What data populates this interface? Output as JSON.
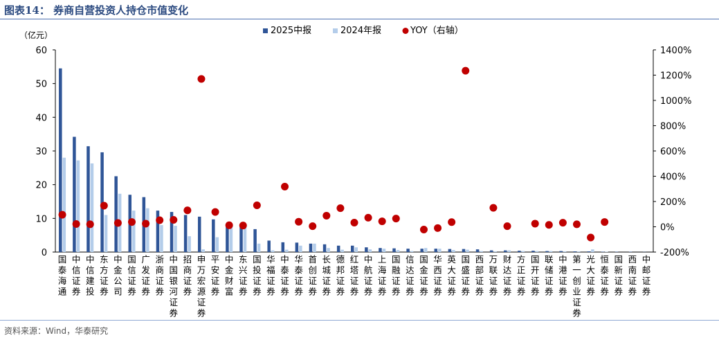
{
  "header": {
    "title": "图表14： 券商自营投资人持仓市值变化"
  },
  "footer": {
    "source": "资料来源：Wind，华泰研究"
  },
  "chart_data": {
    "type": "bar",
    "y_left_label": "（亿元）",
    "ylim_left": [
      0,
      60
    ],
    "yticks_left": [
      "0",
      "10",
      "20",
      "30",
      "40",
      "50",
      "60"
    ],
    "ylim_right": [
      -200,
      1400
    ],
    "yticks_right": [
      "-200%",
      "0%",
      "200%",
      "400%",
      "600%",
      "800%",
      "1000%",
      "1200%",
      "1400%"
    ],
    "legend": [
      "2025中报",
      "2024年报",
      "YOY（右轴）"
    ],
    "colors": {
      "h1_2025": "#2f5597",
      "fy_2024": "#b4cdea",
      "yoy": "#c00000"
    },
    "categories": [
      "国泰海通",
      "中信证券",
      "中信建投",
      "东方证券",
      "中金公司",
      "国信证券",
      "广发证券",
      "浙商证券",
      "中国银河证券",
      "招商证券",
      "申万宏源证券",
      "平安证券",
      "中金财富",
      "东兴证券",
      "国投证券",
      "华福证券",
      "中泰证券",
      "华泰证券",
      "首创证券",
      "长城证券",
      "德邦证券",
      "红塔证券",
      "中航证券",
      "上海证券",
      "国融证券",
      "信达证券",
      "国金证券",
      "华西证券",
      "英大证券",
      "国盛证券",
      "西部证券",
      "万联证券",
      "财达证券",
      "方正证券",
      "国开证券",
      "联储证券",
      "中港证券",
      "第一创业证券",
      "光大证券",
      "恒泰证券",
      "国新证券",
      "西南证券",
      "中邮证券"
    ],
    "series": [
      {
        "name": "2025中报",
        "values": [
          54.5,
          34.2,
          31.4,
          29.6,
          22.5,
          17.0,
          16.3,
          12.3,
          11.9,
          11.0,
          10.5,
          9.7,
          8.4,
          8.3,
          6.8,
          3.4,
          2.9,
          2.8,
          2.5,
          2.3,
          1.9,
          1.9,
          1.4,
          1.2,
          1.1,
          1.0,
          1.0,
          1.0,
          0.9,
          0.9,
          0.8,
          0.5,
          0.5,
          0.4,
          0.4,
          0.3,
          0.3,
          0.2,
          0.2,
          0.1,
          0.1,
          0.1,
          0.05
        ]
      },
      {
        "name": "2024年报",
        "values": [
          28.0,
          27.2,
          26.3,
          11.0,
          17.3,
          12.3,
          13.0,
          8.0,
          7.8,
          4.7,
          0.8,
          4.4,
          8.4,
          7.5,
          2.5,
          0.5,
          0.7,
          1.9,
          2.5,
          1.2,
          0.7,
          1.4,
          0.8,
          1.0,
          0.6,
          0.3,
          1.2,
          1.0,
          0.6,
          0.7,
          0.3,
          0.2,
          0.5,
          0.3,
          0.3,
          0.3,
          0.2,
          0.2,
          0.8,
          0.1,
          0,
          0,
          0
        ]
      },
      {
        "name": "YOY（右轴）",
        "values": [
          95,
          22,
          20,
          167,
          30,
          38,
          25,
          52,
          55,
          130,
          1170,
          117,
          12,
          10,
          170,
          null,
          318,
          40,
          5,
          88,
          147,
          33,
          72,
          43,
          65,
          null,
          -22,
          -10,
          37,
          1235,
          null,
          150,
          5,
          null,
          25,
          15,
          32,
          20,
          -85,
          38,
          null,
          null,
          null
        ]
      }
    ]
  }
}
